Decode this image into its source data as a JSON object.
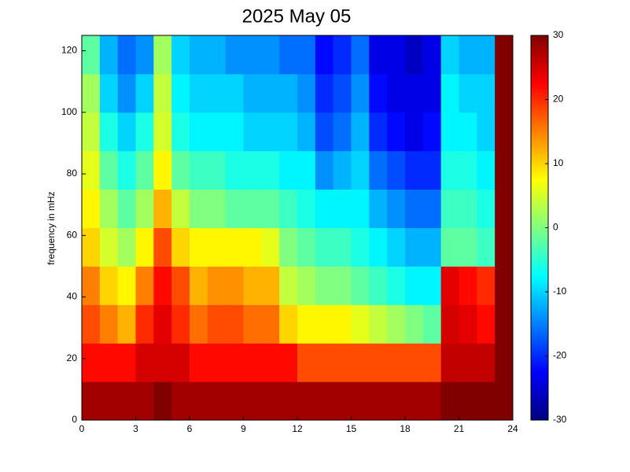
{
  "chart_data": {
    "type": "heatmap",
    "title": "2025 May 05",
    "y_label": "frequency in mHz",
    "x_bins": [
      0,
      1,
      2,
      3,
      4,
      5,
      6,
      7,
      8,
      9,
      10,
      11,
      12,
      13,
      14,
      15,
      16,
      17,
      18,
      19,
      20,
      21,
      22,
      23,
      24
    ],
    "y_bins": [
      0,
      12.5,
      25,
      37.5,
      50,
      62.5,
      75,
      87.5,
      100,
      112.5,
      125
    ],
    "values": [
      [
        28,
        28,
        28,
        28,
        30,
        28,
        28,
        28,
        28,
        28,
        28,
        28,
        28,
        28,
        28,
        28,
        28,
        28,
        28,
        28,
        30,
        30,
        30,
        30
      ],
      [
        22,
        22,
        22,
        25,
        25,
        25,
        22,
        22,
        22,
        22,
        22,
        22,
        18,
        18,
        18,
        18,
        18,
        18,
        18,
        18,
        26,
        26,
        26,
        30
      ],
      [
        18,
        15,
        12,
        20,
        24,
        20,
        16,
        18,
        18,
        16,
        16,
        10,
        8,
        8,
        8,
        6,
        4,
        2,
        0,
        -2,
        25,
        24,
        22,
        30
      ],
      [
        15,
        10,
        8,
        15,
        22,
        18,
        12,
        14,
        14,
        12,
        12,
        4,
        2,
        0,
        0,
        -2,
        -4,
        -6,
        -8,
        -8,
        24,
        22,
        20,
        30
      ],
      [
        10,
        5,
        2,
        8,
        18,
        10,
        8,
        8,
        8,
        8,
        6,
        0,
        -2,
        -4,
        -4,
        -6,
        -8,
        -10,
        -12,
        -12,
        -2,
        -2,
        -4,
        30
      ],
      [
        8,
        2,
        -2,
        2,
        12,
        4,
        0,
        0,
        -2,
        -2,
        -2,
        -4,
        -6,
        -8,
        -8,
        -8,
        -12,
        -14,
        -16,
        -16,
        -4,
        -4,
        -6,
        30
      ],
      [
        6,
        -2,
        -6,
        -2,
        8,
        -2,
        -4,
        -4,
        -6,
        -6,
        -6,
        -8,
        -8,
        -14,
        -12,
        -10,
        -16,
        -18,
        -20,
        -20,
        -6,
        -6,
        -8,
        30
      ],
      [
        4,
        -6,
        -10,
        -6,
        5,
        -6,
        -8,
        -8,
        -8,
        -10,
        -10,
        -10,
        -12,
        -18,
        -16,
        -12,
        -20,
        -22,
        -24,
        -22,
        -8,
        -8,
        -10,
        30
      ],
      [
        2,
        -10,
        -14,
        -10,
        4,
        -8,
        -10,
        -10,
        -10,
        -12,
        -12,
        -12,
        -14,
        -20,
        -18,
        -14,
        -22,
        -24,
        -24,
        -24,
        -8,
        -10,
        -10,
        30
      ],
      [
        -2,
        -12,
        -16,
        -14,
        2,
        -10,
        -12,
        -12,
        -14,
        -14,
        -14,
        -16,
        -16,
        -22,
        -20,
        -16,
        -24,
        -24,
        -26,
        -24,
        -10,
        -12,
        -12,
        30
      ]
    ],
    "xlim": [
      0,
      24
    ],
    "xticks": [
      0,
      3,
      6,
      9,
      12,
      15,
      18,
      21,
      24
    ],
    "ylim": [
      0,
      125
    ],
    "yticks": [
      0,
      20,
      40,
      60,
      80,
      100,
      120
    ],
    "clim": [
      -30,
      30
    ],
    "cticks": [
      -30,
      -20,
      -10,
      0,
      10,
      20,
      30
    ],
    "colormap": "jet"
  }
}
